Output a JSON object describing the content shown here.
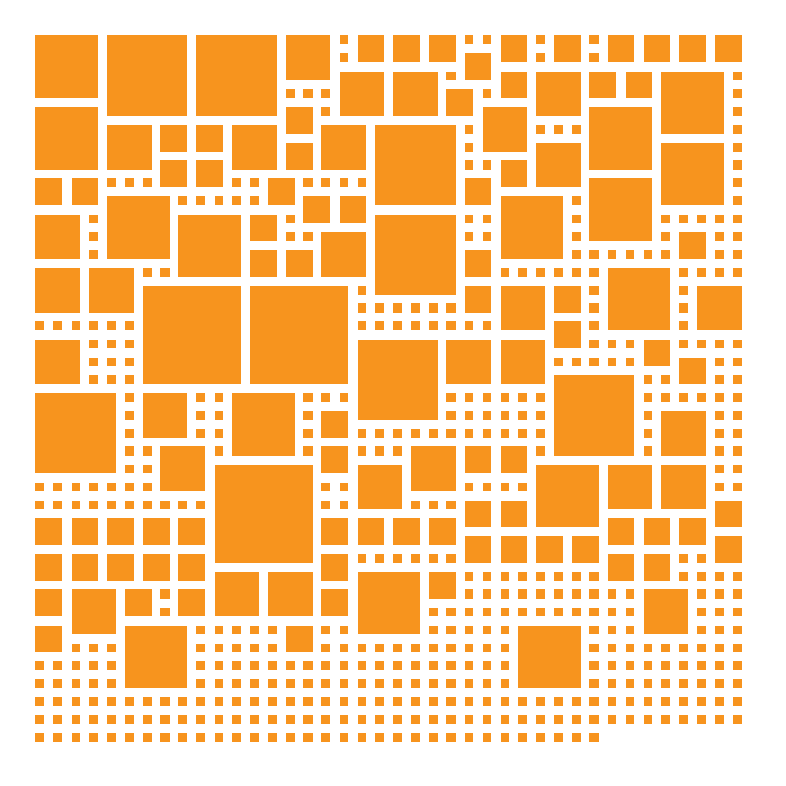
{
  "figure": {
    "fill_color": "#F7941E",
    "background_color": "#FFFFFF",
    "grid_columns": 40,
    "grid_rows": 40,
    "last_row_filled_columns": 32,
    "large_squares": [
      [
        0,
        0,
        4
      ],
      [
        4,
        0,
        5
      ],
      [
        9,
        0,
        5
      ],
      [
        14,
        0,
        3
      ],
      [
        18,
        0,
        2
      ],
      [
        20,
        0,
        2
      ],
      [
        22,
        0,
        2
      ],
      [
        24,
        1,
        2
      ],
      [
        26,
        0,
        2
      ],
      [
        29,
        0,
        2
      ],
      [
        32,
        0,
        2
      ],
      [
        34,
        0,
        2
      ],
      [
        36,
        0,
        2
      ],
      [
        38,
        0,
        2
      ],
      [
        17,
        2,
        3
      ],
      [
        20,
        2,
        3
      ],
      [
        23,
        3,
        2
      ],
      [
        26,
        2,
        2
      ],
      [
        28,
        2,
        3
      ],
      [
        31,
        2,
        2
      ],
      [
        33,
        2,
        2
      ],
      [
        35,
        2,
        4
      ],
      [
        0,
        4,
        4
      ],
      [
        4,
        5,
        3
      ],
      [
        7,
        5,
        2
      ],
      [
        9,
        5,
        2
      ],
      [
        11,
        5,
        3
      ],
      [
        14,
        4,
        2
      ],
      [
        14,
        6,
        2
      ],
      [
        16,
        5,
        3
      ],
      [
        19,
        5,
        5
      ],
      [
        25,
        4,
        3
      ],
      [
        31,
        4,
        4
      ],
      [
        35,
        6,
        4
      ],
      [
        28,
        6,
        3
      ],
      [
        26,
        7,
        2
      ],
      [
        24,
        8,
        2
      ],
      [
        7,
        7,
        2
      ],
      [
        9,
        7,
        2
      ],
      [
        0,
        8,
        2
      ],
      [
        2,
        8,
        2
      ],
      [
        13,
        8,
        2
      ],
      [
        15,
        9,
        2
      ],
      [
        17,
        9,
        2
      ],
      [
        31,
        8,
        4
      ],
      [
        26,
        9,
        4
      ],
      [
        4,
        9,
        4
      ],
      [
        0,
        10,
        3
      ],
      [
        8,
        10,
        4
      ],
      [
        12,
        10,
        2
      ],
      [
        16,
        11,
        3
      ],
      [
        19,
        10,
        5
      ],
      [
        24,
        12,
        2
      ],
      [
        36,
        11,
        2
      ],
      [
        12,
        12,
        2
      ],
      [
        14,
        12,
        2
      ],
      [
        0,
        13,
        3
      ],
      [
        3,
        13,
        3
      ],
      [
        6,
        14,
        6
      ],
      [
        12,
        14,
        6
      ],
      [
        24,
        14,
        2
      ],
      [
        26,
        14,
        3
      ],
      [
        29,
        14,
        2
      ],
      [
        29,
        16,
        2
      ],
      [
        32,
        13,
        4
      ],
      [
        37,
        14,
        3
      ],
      [
        0,
        17,
        3
      ],
      [
        18,
        17,
        5
      ],
      [
        23,
        17,
        3
      ],
      [
        26,
        17,
        3
      ],
      [
        34,
        17,
        2
      ],
      [
        36,
        18,
        2
      ],
      [
        29,
        19,
        5
      ],
      [
        0,
        20,
        5
      ],
      [
        6,
        20,
        3
      ],
      [
        11,
        20,
        4
      ],
      [
        16,
        21,
        2
      ],
      [
        35,
        21,
        3
      ],
      [
        7,
        23,
        3
      ],
      [
        10,
        24,
        6
      ],
      [
        16,
        23,
        2
      ],
      [
        21,
        23,
        3
      ],
      [
        24,
        23,
        2
      ],
      [
        26,
        23,
        2
      ],
      [
        18,
        24,
        3
      ],
      [
        28,
        24,
        4
      ],
      [
        32,
        24,
        3
      ],
      [
        35,
        24,
        3
      ],
      [
        24,
        26,
        2
      ],
      [
        26,
        26,
        2
      ],
      [
        38,
        26,
        2
      ],
      [
        0,
        27,
        2
      ],
      [
        2,
        27,
        2
      ],
      [
        4,
        27,
        2
      ],
      [
        6,
        27,
        2
      ],
      [
        8,
        27,
        2
      ],
      [
        16,
        27,
        2
      ],
      [
        18,
        27,
        2
      ],
      [
        20,
        27,
        2
      ],
      [
        22,
        27,
        2
      ],
      [
        32,
        27,
        2
      ],
      [
        34,
        27,
        2
      ],
      [
        36,
        27,
        2
      ],
      [
        38,
        28,
        2
      ],
      [
        24,
        28,
        2
      ],
      [
        26,
        28,
        2
      ],
      [
        28,
        28,
        2
      ],
      [
        30,
        28,
        2
      ],
      [
        0,
        29,
        2
      ],
      [
        2,
        29,
        2
      ],
      [
        4,
        29,
        2
      ],
      [
        6,
        29,
        2
      ],
      [
        8,
        29,
        2
      ],
      [
        16,
        29,
        2
      ],
      [
        32,
        29,
        2
      ],
      [
        34,
        29,
        2
      ],
      [
        10,
        30,
        3
      ],
      [
        13,
        30,
        3
      ],
      [
        18,
        30,
        4
      ],
      [
        22,
        30,
        2
      ],
      [
        0,
        31,
        2
      ],
      [
        2,
        31,
        3
      ],
      [
        5,
        31,
        2
      ],
      [
        8,
        31,
        2
      ],
      [
        16,
        31,
        2
      ],
      [
        34,
        31,
        3
      ],
      [
        0,
        33,
        2
      ],
      [
        5,
        33,
        4
      ],
      [
        14,
        33,
        2
      ],
      [
        27,
        33,
        4
      ]
    ]
  }
}
